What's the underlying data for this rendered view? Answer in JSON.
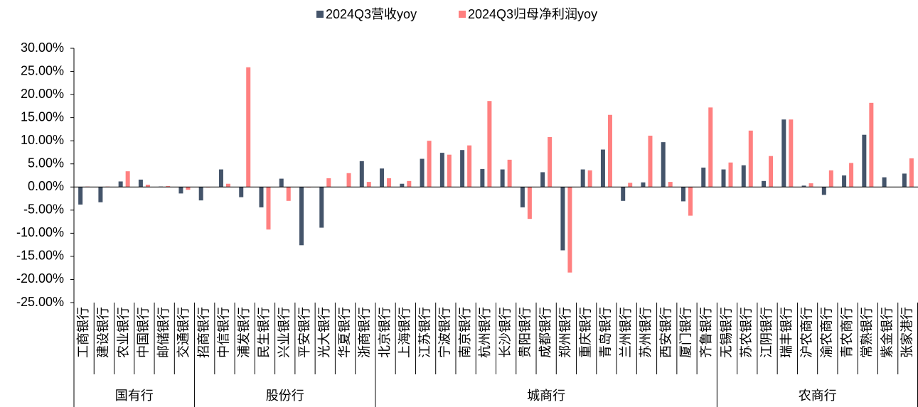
{
  "chart_data": {
    "type": "bar",
    "series": [
      {
        "name": "2024Q3营收yoy",
        "color": "#44546a",
        "values": [
          -3.8,
          -3.3,
          1.2,
          1.6,
          0.1,
          -1.4,
          -2.9,
          3.8,
          -2.2,
          -4.4,
          1.8,
          -12.6,
          -8.8,
          0,
          5.6,
          4.0,
          0.7,
          6.1,
          7.4,
          8.0,
          3.9,
          3.8,
          -4.4,
          3.2,
          -13.7,
          3.8,
          8.1,
          -3.0,
          1.0,
          9.7,
          -3.1,
          4.2,
          3.8,
          4.7,
          1.3,
          14.6,
          0.3,
          -1.7,
          2.5,
          11.3,
          2.1,
          2.9
        ]
      },
      {
        "name": "2024Q3归母净利润yoy",
        "color": "#ff8080",
        "values": [
          0.1,
          0.1,
          3.4,
          0.5,
          0.2,
          -0.6,
          -0.1,
          0.7,
          25.9,
          -9.2,
          -3.0,
          -0.1,
          1.9,
          3.0,
          1.1,
          1.9,
          1.3,
          10.0,
          7.0,
          9.0,
          18.6,
          5.9,
          -6.9,
          10.8,
          -18.5,
          3.6,
          15.6,
          0.9,
          11.1,
          1.1,
          -6.2,
          17.2,
          5.3,
          12.2,
          6.7,
          14.6,
          0.8,
          3.6,
          5.2,
          18.2,
          0,
          6.2
        ]
      }
    ],
    "groups": [
      {
        "name": "国有行",
        "categories": [
          "工商银行",
          "建设银行",
          "农业银行",
          "中国银行",
          "邮储银行",
          "交通银行"
        ]
      },
      {
        "name": "股份行",
        "categories": [
          "招商银行",
          "中信银行",
          "浦发银行",
          "民生银行",
          "兴业银行",
          "平安银行",
          "光大银行",
          "华夏银行",
          "浙商银行"
        ]
      },
      {
        "name": "城商行",
        "categories": [
          "北京银行",
          "上海银行",
          "江苏银行",
          "宁波银行",
          "南京银行",
          "杭州银行",
          "长沙银行",
          "贵阳银行",
          "成都银行",
          "郑州银行",
          "重庆银行",
          "青岛银行",
          "兰州银行",
          "苏州银行",
          "西安银行",
          "厦门银行",
          "齐鲁银行"
        ]
      },
      {
        "name": "农商行",
        "categories": [
          "无锡银行",
          "苏农银行",
          "江阴银行",
          "瑞丰银行",
          "沪农商行",
          "渝农商行",
          "青农商行",
          "常熟银行",
          "紫金银行",
          "张家港行"
        ]
      }
    ],
    "ylim": [
      -25,
      30
    ],
    "yticks": [
      {
        "value": -25,
        "label": "-25.00%"
      },
      {
        "value": -20,
        "label": "-20.00%"
      },
      {
        "value": -15,
        "label": "-15.00%"
      },
      {
        "value": -10,
        "label": "-10.00%"
      },
      {
        "value": -5,
        "label": "-5.00%"
      },
      {
        "value": 0,
        "label": "0.00%"
      },
      {
        "value": 5,
        "label": "5.00%"
      },
      {
        "value": 10,
        "label": "10.00%"
      },
      {
        "value": 15,
        "label": "15.00%"
      },
      {
        "value": 20,
        "label": "20.00%"
      },
      {
        "value": 25,
        "label": "25.00%"
      },
      {
        "value": 30,
        "label": "30.00%"
      }
    ],
    "legend": "top"
  }
}
